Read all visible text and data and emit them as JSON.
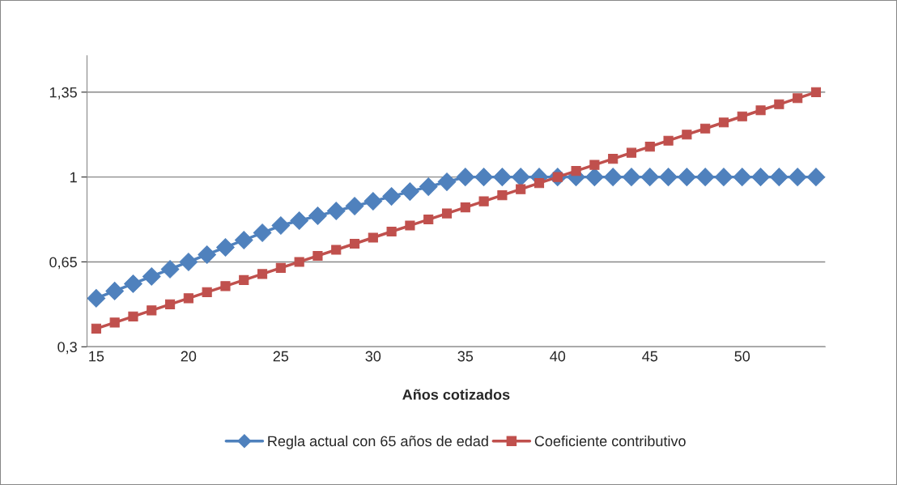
{
  "chart_data": {
    "type": "line",
    "xlabel": "Años cotizados",
    "categories": [
      "15",
      null,
      null,
      null,
      null,
      "20",
      null,
      null,
      null,
      null,
      "25",
      null,
      null,
      null,
      null,
      "30",
      null,
      null,
      null,
      null,
      "35",
      null,
      null,
      null,
      null,
      "40",
      null,
      null,
      null,
      null,
      "45",
      null,
      null,
      null,
      null,
      "50",
      null,
      null,
      null,
      null
    ],
    "series": [
      {
        "name": "Regla actual con 65 años de edad",
        "color": "#4f81bd",
        "marker": "diamond",
        "values": [
          0.5,
          0.53,
          0.56,
          0.59,
          0.62,
          0.65,
          0.68,
          0.71,
          0.74,
          0.77,
          0.8,
          0.82,
          0.84,
          0.86,
          0.88,
          0.9,
          0.92,
          0.94,
          0.96,
          0.98,
          1,
          1,
          1,
          1,
          1,
          1,
          1,
          1,
          1,
          1,
          1,
          1,
          1,
          1,
          1,
          1,
          1,
          1,
          1,
          1
        ]
      },
      {
        "name": "Coeficiente contributivo",
        "color": "#c0504d",
        "marker": "square",
        "values": [
          0.375,
          0.4,
          0.425,
          0.45,
          0.475,
          0.5,
          0.525,
          0.55,
          0.575,
          0.6,
          0.625,
          0.65,
          0.675,
          0.7,
          0.725,
          0.75,
          0.775,
          0.8,
          0.825,
          0.85,
          0.875,
          0.9,
          0.925,
          0.95,
          0.975,
          1,
          1.025,
          1.05,
          1.075,
          1.1,
          1.125,
          1.15,
          1.175,
          1.2,
          1.225,
          1.25,
          1.275,
          1.3,
          1.325,
          1.35
        ]
      }
    ],
    "ylim": [
      0.3,
      1.5
    ],
    "yticks": [
      {
        "value": 0.3,
        "label": "0,3"
      },
      {
        "value": 0.65,
        "label": "0,65"
      },
      1,
      {
        "value": 1.35,
        "label": "1,35"
      }
    ],
    "grid": "y",
    "legend": "bottom",
    "line_style": "solid"
  }
}
